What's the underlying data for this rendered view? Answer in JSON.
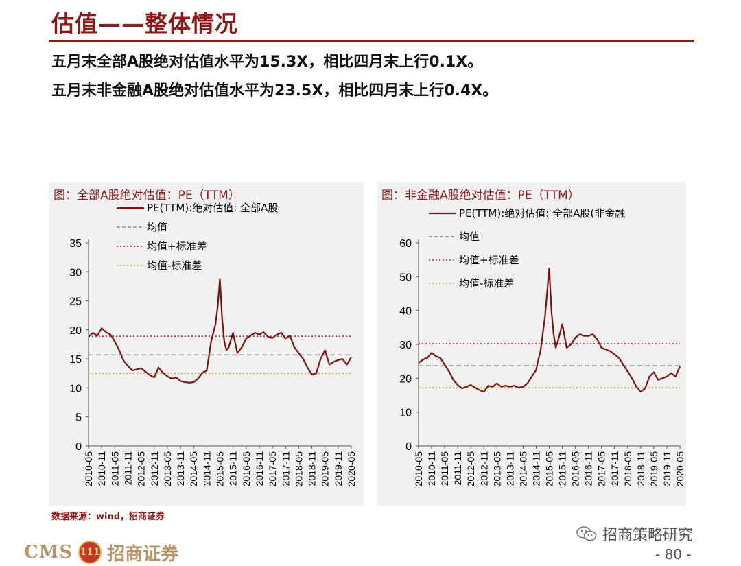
{
  "page": {
    "title": "估值——整体情况",
    "subline1": "五月末全部A股绝对估值水平为15.3X，相比四月末上行0.1X。",
    "subline2": "五月末非金融A股绝对估值水平为23.5X，相比四月末上行0.4X。",
    "source": "数据来源：wind，招商证券",
    "brand_cms": "CMS",
    "brand_coin": "111",
    "brand_name": "招商证券",
    "wechat_label": "招商策略研究",
    "page_number": "- 80 -",
    "accent_color": "#8b1a1a"
  },
  "chart_data": [
    {
      "type": "line",
      "title": "图：全部A股绝对估值：PE（TTM）",
      "x_ticks": [
        "2010-05",
        "2010-11",
        "2011-05",
        "2011-11",
        "2012-05",
        "2012-11",
        "2013-05",
        "2013-11",
        "2014-05",
        "2014-11",
        "2015-05",
        "2015-11",
        "2016-05",
        "2016-11",
        "2017-05",
        "2017-11",
        "2018-05",
        "2018-11",
        "2019-05",
        "2019-11",
        "2020-05"
      ],
      "y_ticks": [
        0,
        5,
        10,
        15,
        20,
        25,
        30,
        35
      ],
      "ylim": [
        0,
        35
      ],
      "legend": [
        "PE(TTM):绝对估值: 全部A股",
        "均值",
        "均值+标准差",
        "均值-标准差"
      ],
      "series": [
        {
          "name": "PE(TTM):绝对估值: 全部A股",
          "color": "#7b1113",
          "style": "solid",
          "x": [
            "2010-05",
            "2010-07",
            "2010-09",
            "2010-11",
            "2011-01",
            "2011-03",
            "2011-05",
            "2011-07",
            "2011-09",
            "2011-11",
            "2012-01",
            "2012-03",
            "2012-05",
            "2012-07",
            "2012-09",
            "2012-11",
            "2013-01",
            "2013-03",
            "2013-05",
            "2013-07",
            "2013-09",
            "2013-11",
            "2014-01",
            "2014-03",
            "2014-05",
            "2014-07",
            "2014-09",
            "2014-11",
            "2014-12",
            "2015-01",
            "2015-03",
            "2015-04",
            "2015-05",
            "2015-06",
            "2015-07",
            "2015-08",
            "2015-09",
            "2015-11",
            "2016-01",
            "2016-03",
            "2016-05",
            "2016-07",
            "2016-09",
            "2016-11",
            "2017-01",
            "2017-03",
            "2017-05",
            "2017-07",
            "2017-09",
            "2017-11",
            "2018-01",
            "2018-03",
            "2018-05",
            "2018-07",
            "2018-09",
            "2018-11",
            "2019-01",
            "2019-03",
            "2019-05",
            "2019-07",
            "2019-09",
            "2019-11",
            "2020-01",
            "2020-03",
            "2020-05"
          ],
          "values": [
            18.8,
            19.5,
            19.0,
            20.3,
            19.6,
            19.2,
            18.0,
            16.5,
            14.7,
            13.8,
            13.0,
            13.2,
            13.4,
            12.8,
            12.2,
            11.8,
            13.5,
            12.6,
            12.0,
            11.6,
            11.8,
            11.2,
            11.0,
            10.9,
            11.0,
            11.6,
            12.6,
            13.0,
            15.5,
            18.0,
            21.0,
            24.0,
            28.8,
            22.0,
            18.0,
            16.5,
            17.0,
            19.5,
            16.0,
            17.0,
            18.5,
            19.0,
            19.5,
            19.2,
            19.6,
            18.8,
            18.6,
            19.2,
            19.5,
            18.5,
            19.0,
            17.0,
            16.0,
            15.0,
            13.5,
            12.3,
            12.5,
            15.0,
            16.5,
            14.0,
            14.5,
            14.8,
            15.0,
            14.0,
            15.3
          ]
        },
        {
          "name": "均值",
          "color": "#888888",
          "style": "dashed",
          "value": 15.7
        },
        {
          "name": "均值+标准差",
          "color": "#9e2a2a",
          "style": "dotted",
          "value": 18.9
        },
        {
          "name": "均值-标准差",
          "color": "#d4a520",
          "style": "dotted",
          "value": 12.5
        }
      ]
    },
    {
      "type": "line",
      "title": "图：非金融A股绝对估值：PE（TTM）",
      "x_ticks": [
        "2010-05",
        "2010-11",
        "2011-05",
        "2011-11",
        "2012-05",
        "2012-11",
        "2013-05",
        "2013-11",
        "2014-05",
        "2014-11",
        "2015-05",
        "2015-11",
        "2016-05",
        "2016-11",
        "2017-05",
        "2017-11",
        "2018-05",
        "2018-11",
        "2019-05",
        "2019-11",
        "2020-05"
      ],
      "y_ticks": [
        0,
        10,
        20,
        30,
        40,
        50,
        60
      ],
      "ylim": [
        0,
        60
      ],
      "legend": [
        "PE(TTM):绝对估值: 全部A股(非金融",
        "均值",
        "均值+标准差",
        "均值-标准差"
      ],
      "series": [
        {
          "name": "PE(TTM):绝对估值: 全部A股(非金融",
          "color": "#7b1113",
          "style": "solid",
          "x": [
            "2010-05",
            "2010-07",
            "2010-09",
            "2010-11",
            "2011-01",
            "2011-03",
            "2011-05",
            "2011-07",
            "2011-09",
            "2011-11",
            "2012-01",
            "2012-03",
            "2012-05",
            "2012-07",
            "2012-09",
            "2012-11",
            "2013-01",
            "2013-03",
            "2013-05",
            "2013-07",
            "2013-09",
            "2013-11",
            "2014-01",
            "2014-03",
            "2014-05",
            "2014-07",
            "2014-09",
            "2014-11",
            "2014-12",
            "2015-01",
            "2015-03",
            "2015-04",
            "2015-05",
            "2015-06",
            "2015-07",
            "2015-08",
            "2015-09",
            "2015-11",
            "2016-01",
            "2016-03",
            "2016-05",
            "2016-07",
            "2016-09",
            "2016-11",
            "2017-01",
            "2017-03",
            "2017-05",
            "2017-07",
            "2017-09",
            "2017-11",
            "2018-01",
            "2018-03",
            "2018-05",
            "2018-07",
            "2018-09",
            "2018-11",
            "2019-01",
            "2019-03",
            "2019-05",
            "2019-07",
            "2019-09",
            "2019-11",
            "2020-01",
            "2020-03",
            "2020-05"
          ],
          "values": [
            24.5,
            25.5,
            26.0,
            27.5,
            26.5,
            26.0,
            24.0,
            22.0,
            19.5,
            18.0,
            17.0,
            17.5,
            18.0,
            17.2,
            16.5,
            16.0,
            17.8,
            17.5,
            18.5,
            17.5,
            17.8,
            17.5,
            17.8,
            17.2,
            17.5,
            18.5,
            20.5,
            22.5,
            25.5,
            28.0,
            38.0,
            45.0,
            52.5,
            40.0,
            33.0,
            29.0,
            31.0,
            36.0,
            29.0,
            30.0,
            32.0,
            33.0,
            32.5,
            32.5,
            33.0,
            31.5,
            29.0,
            28.5,
            28.0,
            27.0,
            26.0,
            24.0,
            22.0,
            20.0,
            17.5,
            16.0,
            17.0,
            20.5,
            21.8,
            19.5,
            20.0,
            20.5,
            21.5,
            20.5,
            23.5
          ]
        },
        {
          "name": "均值",
          "color": "#888888",
          "style": "dashed",
          "value": 23.7
        },
        {
          "name": "均值+标准差",
          "color": "#9e2a2a",
          "style": "dotted",
          "value": 30.2
        },
        {
          "name": "均值-标准差",
          "color": "#d4a520",
          "style": "dotted",
          "value": 17.2
        }
      ]
    }
  ]
}
